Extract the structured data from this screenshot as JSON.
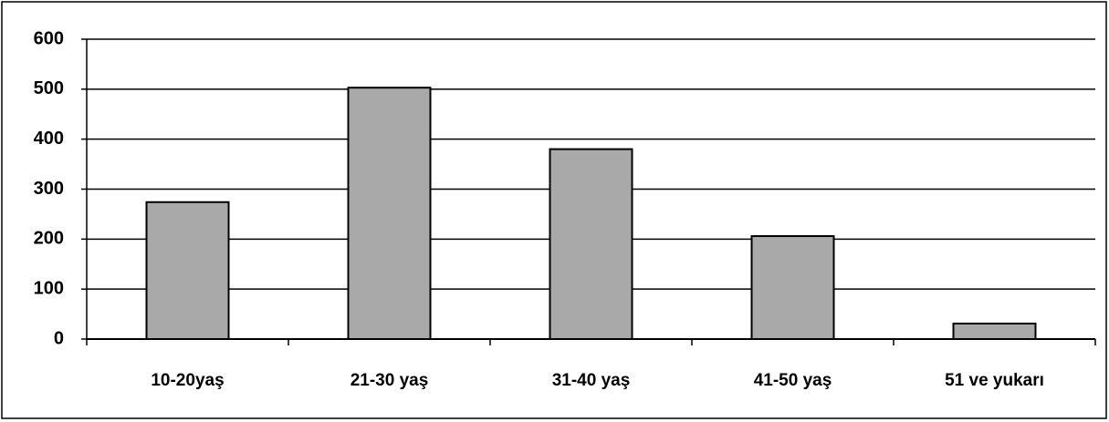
{
  "chart_data": {
    "type": "bar",
    "categories": [
      "10-20yaş",
      "21-30 yaş",
      "31-40 yaş",
      "41-50 yaş",
      "51 ve yukarı"
    ],
    "values": [
      274,
      503,
      380,
      206,
      31
    ],
    "color": "#a9a9a9",
    "ylim": [
      0,
      600
    ],
    "yticks": [
      0,
      100,
      200,
      300,
      400,
      500,
      600
    ],
    "grid": true
  }
}
